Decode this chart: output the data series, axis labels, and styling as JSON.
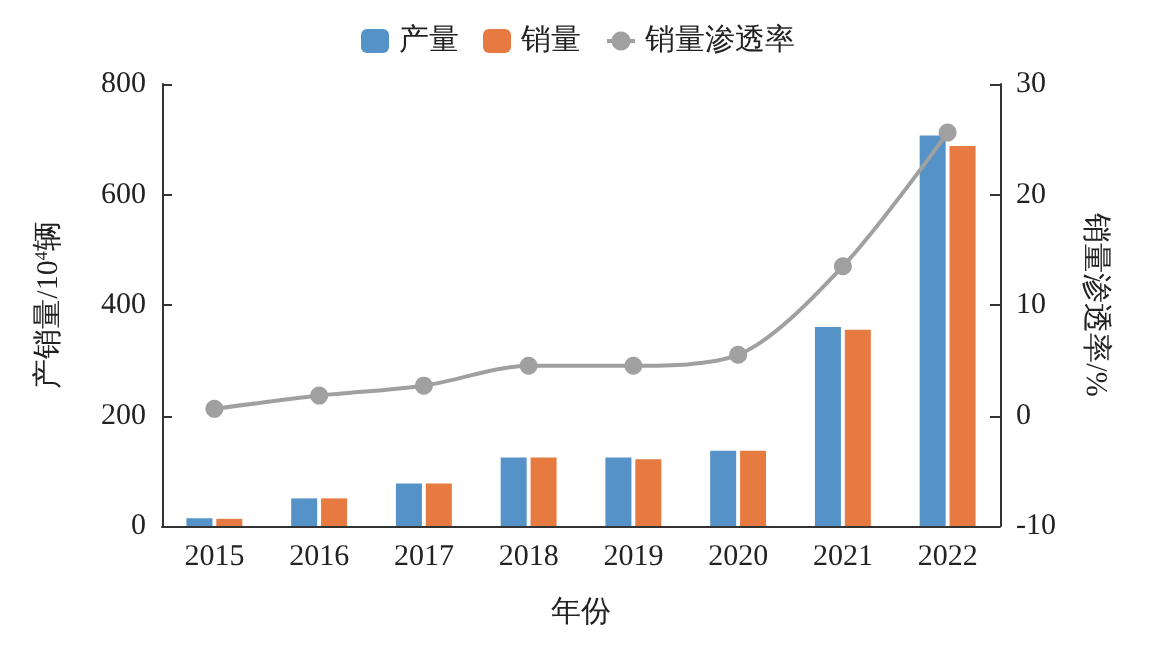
{
  "chart_data": {
    "type": "bar",
    "categories": [
      "2015",
      "2016",
      "2017",
      "2018",
      "2019",
      "2020",
      "2021",
      "2022"
    ],
    "series": [
      {
        "name": "产量",
        "color": "#5592c7",
        "values": [
          14,
          50,
          77,
          124,
          124,
          136,
          360,
          707
        ]
      },
      {
        "name": "销量",
        "color": "#e67a40",
        "values": [
          13,
          50,
          77,
          124,
          121,
          136,
          355,
          688
        ]
      },
      {
        "name": "销量渗透率",
        "type": "line",
        "axis": "y2",
        "color": "#a0a0a0",
        "values": [
          0.6,
          1.8,
          2.7,
          4.5,
          4.5,
          5.5,
          13.5,
          25.6
        ]
      }
    ],
    "xlabel": "年份",
    "ylabel": "产销量/10$^{4}$辆",
    "y2label": "销量渗透率/%",
    "ylim": [
      0,
      800
    ],
    "yticks": [
      0,
      200,
      400,
      600,
      800
    ],
    "y2lim": [
      -10,
      30
    ],
    "y2ticks": [
      -10,
      0,
      10,
      20,
      30
    ],
    "legend": "top",
    "marker": "circle",
    "line_style": "solid",
    "grid": false
  }
}
